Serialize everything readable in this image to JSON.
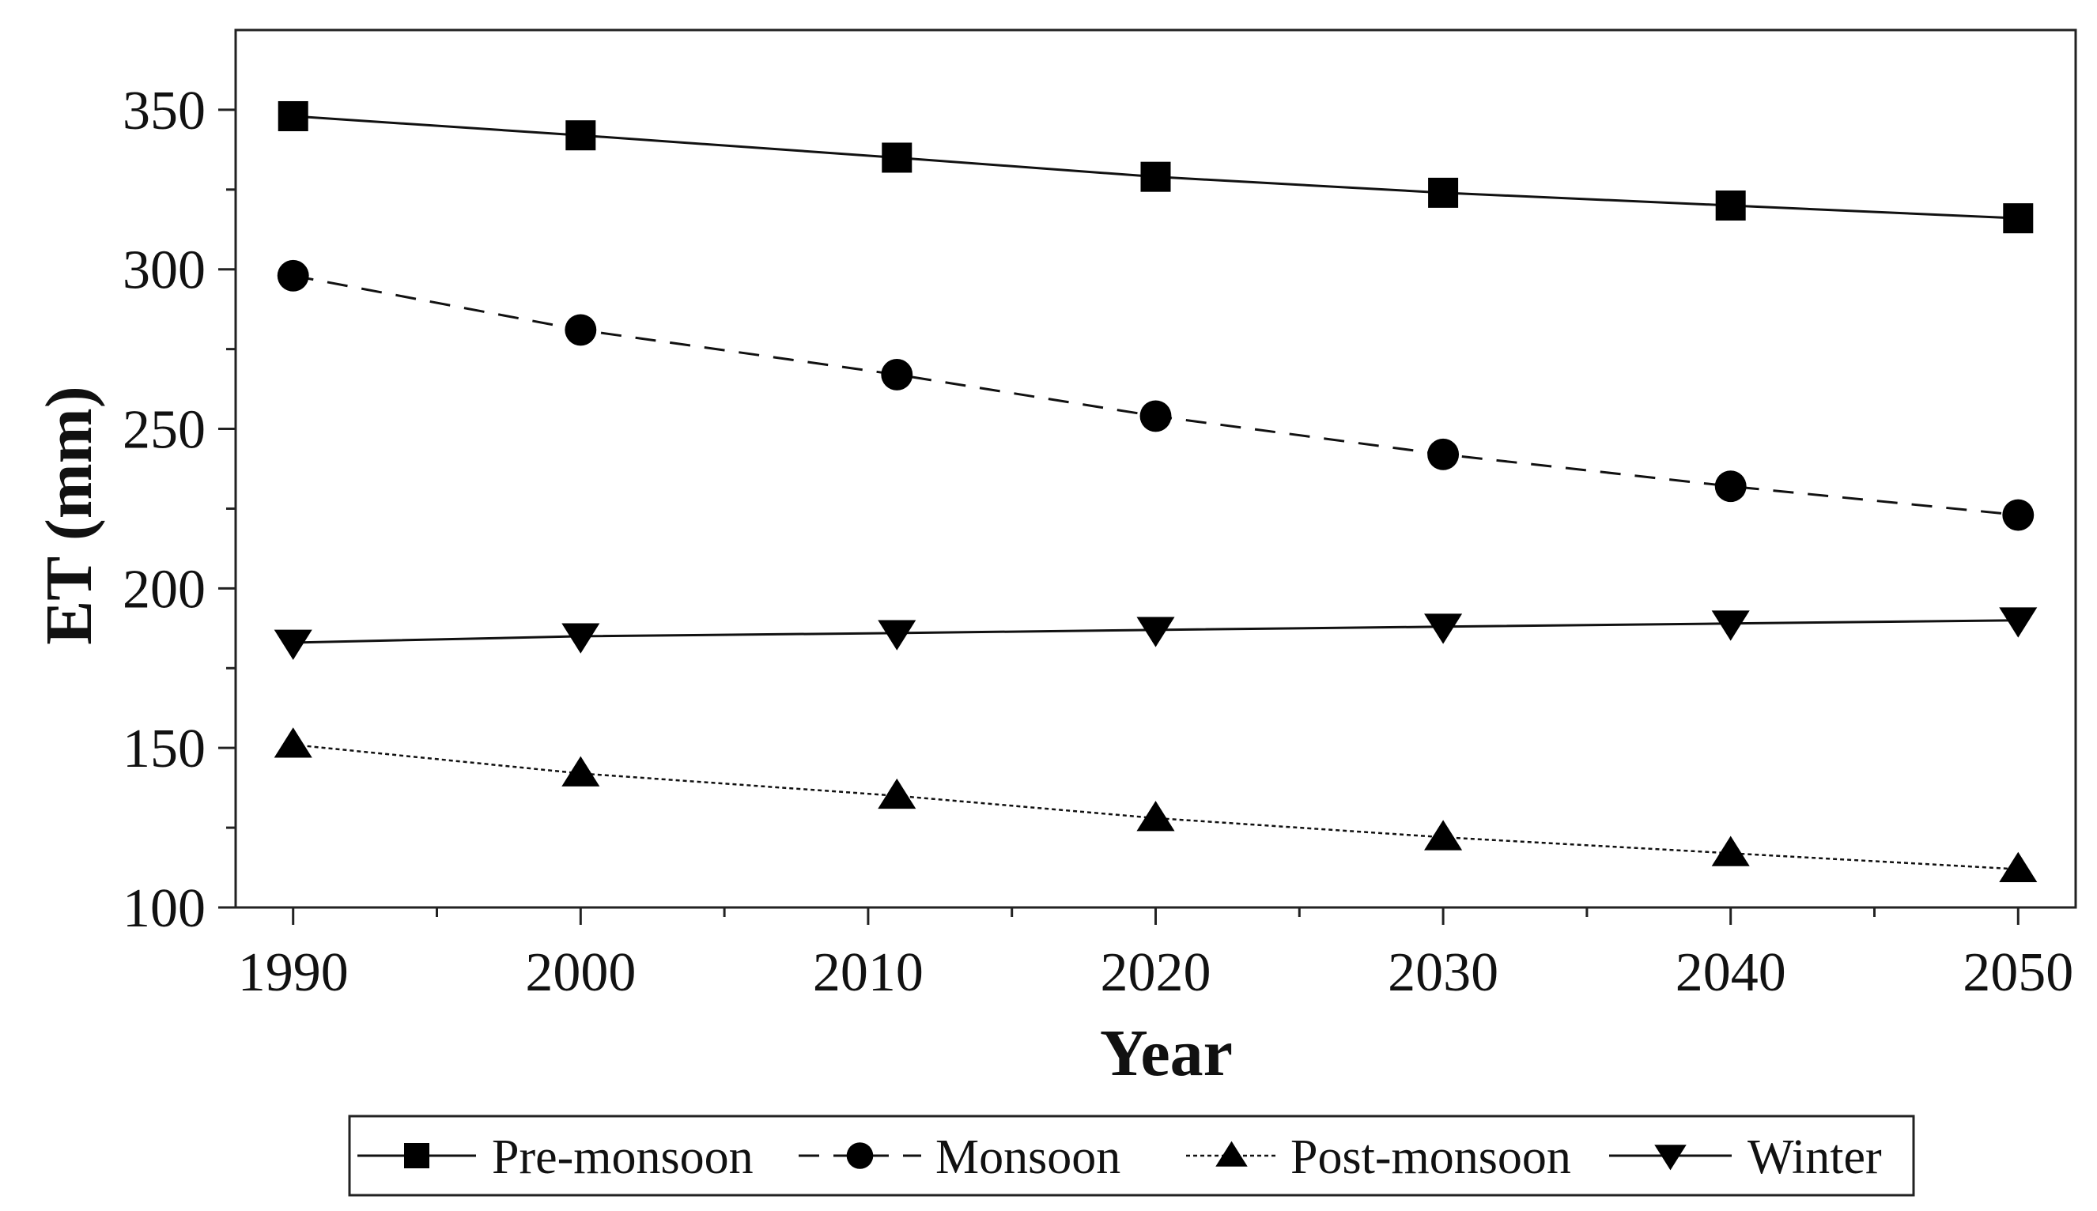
{
  "chart_data": {
    "type": "line",
    "title": "",
    "xlabel": "Year",
    "ylabel": "ET (mm)",
    "x": [
      1990,
      2000,
      2011,
      2020,
      2030,
      2040,
      2050
    ],
    "xticks": [
      "1990",
      "2000",
      "2010",
      "2020",
      "2030",
      "2040",
      "2050"
    ],
    "xtick_values": [
      1990,
      2000,
      2010,
      2020,
      2030,
      2040,
      2050
    ],
    "xlim": [
      1988,
      2052
    ],
    "yticks": [
      "100",
      "150",
      "200",
      "250",
      "300",
      "350"
    ],
    "ytick_values": [
      100,
      150,
      200,
      250,
      300,
      350
    ],
    "ylim": [
      100,
      375
    ],
    "grid": false,
    "legend_position": "bottom",
    "series": [
      {
        "name": "Pre-monsoon",
        "marker": "square",
        "line_style": "solid",
        "values": [
          348,
          342,
          335,
          329,
          324,
          320,
          316
        ]
      },
      {
        "name": "Monsoon",
        "marker": "circle",
        "line_style": "dashed",
        "values": [
          298,
          281,
          267,
          254,
          242,
          232,
          223
        ]
      },
      {
        "name": "Post-monsoon",
        "marker": "triangle-up",
        "line_style": "dotted",
        "values": [
          151,
          142,
          135,
          128,
          122,
          117,
          112
        ]
      },
      {
        "name": "Winter",
        "marker": "triangle-down",
        "line_style": "solid",
        "values": [
          183,
          185,
          186,
          187,
          188,
          189,
          190
        ]
      }
    ],
    "colors": {
      "line": "#111111",
      "marker": "#000000",
      "axis": "#222222"
    }
  }
}
